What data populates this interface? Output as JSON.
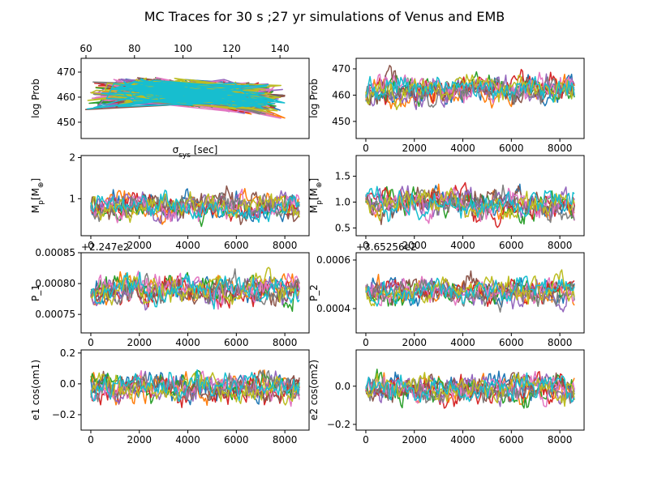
{
  "figure": {
    "title": "MC Traces for 30 s ;27 yr simulations of Venus and EMB",
    "palette": [
      "#1f77b4",
      "#ff7f0e",
      "#2ca02c",
      "#d62728",
      "#9467bd",
      "#8c564b",
      "#e377c2",
      "#7f7f7f",
      "#bcbd22",
      "#17becf"
    ]
  },
  "chart_data": [
    {
      "id": "logprob-vs-sigma",
      "type": "line",
      "xlabel": "σ_sys [sec]",
      "ylabel": "log Prob",
      "x_axis_position": "top",
      "xlim": [
        58,
        152
      ],
      "ylim": [
        443.5,
        475.5
      ],
      "xticks": [
        60,
        80,
        100,
        120,
        140
      ],
      "xtick_labels": [
        "60",
        "80",
        "100",
        "120",
        "140"
      ],
      "yticks": [
        450,
        460,
        470
      ],
      "ytick_labels": [
        "450",
        "460",
        "470"
      ],
      "series_count": 10,
      "samples_per_series": 120,
      "y_center": 463,
      "y_spread": 5
    },
    {
      "id": "logprob-trace",
      "type": "line",
      "xlabel": "",
      "ylabel": "log Prob",
      "xlim": [
        -400,
        9000
      ],
      "ylim": [
        443.5,
        474
      ],
      "xticks": [
        0,
        2000,
        4000,
        6000,
        8000
      ],
      "xtick_labels": [
        "0",
        "2000",
        "4000",
        "6000",
        "8000"
      ],
      "yticks": [
        450,
        460,
        470
      ],
      "ytick_labels": [
        "450",
        "460",
        "470"
      ],
      "series_count": 10,
      "samples_per_series": 150,
      "x_max": 8600,
      "y_center": 462,
      "y_spread": 6
    },
    {
      "id": "mass-1-trace",
      "type": "line",
      "xlabel": "",
      "ylabel": "M_p[M_⊕]",
      "xlim": [
        -400,
        9000
      ],
      "ylim": [
        0.1,
        2.05
      ],
      "xticks": [
        0,
        2000,
        4000,
        6000,
        8000
      ],
      "xtick_labels": [
        "0",
        "2000",
        "4000",
        "6000",
        "8000"
      ],
      "yticks": [
        1,
        2
      ],
      "ytick_labels": [
        "1",
        "2"
      ],
      "series_count": 10,
      "samples_per_series": 150,
      "x_max": 8600,
      "y_center": 0.8,
      "y_spread": 0.35
    },
    {
      "id": "mass-2-trace",
      "type": "line",
      "xlabel": "",
      "ylabel": "M_p[M_⊕]",
      "xlim": [
        -400,
        9000
      ],
      "ylim": [
        0.35,
        1.9
      ],
      "xticks": [
        0,
        2000,
        4000,
        6000,
        8000
      ],
      "xtick_labels": [
        "0",
        "2000",
        "4000",
        "6000",
        "8000"
      ],
      "yticks": [
        0.5,
        1.0,
        1.5
      ],
      "ytick_labels": [
        "0.5",
        "1.0",
        "1.5"
      ],
      "series_count": 10,
      "samples_per_series": 150,
      "x_max": 8600,
      "y_center": 0.95,
      "y_spread": 0.3
    },
    {
      "id": "period-1-trace",
      "type": "line",
      "xlabel": "",
      "ylabel": "P_1",
      "offset_text": "+2.247e2",
      "xlim": [
        -400,
        9000
      ],
      "ylim": [
        0.00072,
        0.00085
      ],
      "xticks": [
        0,
        2000,
        4000,
        6000,
        8000
      ],
      "xtick_labels": [
        "0",
        "2000",
        "4000",
        "6000",
        "8000"
      ],
      "yticks": [
        0.00075,
        0.0008,
        0.00085
      ],
      "ytick_labels": [
        "0.00075",
        "0.00080",
        "0.00085"
      ],
      "series_count": 10,
      "samples_per_series": 150,
      "x_max": 8600,
      "y_center": 0.00079,
      "y_spread": 2.5e-05
    },
    {
      "id": "period-2-trace",
      "type": "line",
      "xlabel": "",
      "ylabel": "P_2",
      "offset_text": "+3.65256e2",
      "xlim": [
        -400,
        9000
      ],
      "ylim": [
        0.0003,
        0.00063
      ],
      "xticks": [
        0,
        2000,
        4000,
        6000,
        8000
      ],
      "xtick_labels": [
        "0",
        "2000",
        "4000",
        "6000",
        "8000"
      ],
      "yticks": [
        0.0004,
        0.0006
      ],
      "ytick_labels": [
        "0.0004",
        "0.0006"
      ],
      "series_count": 10,
      "samples_per_series": 150,
      "x_max": 8600,
      "y_center": 0.00047,
      "y_spread": 6e-05
    },
    {
      "id": "ecos-1-trace",
      "type": "line",
      "xlabel": "",
      "ylabel": "e1 cos(om1)",
      "xlim": [
        -400,
        9000
      ],
      "ylim": [
        -0.3,
        0.22
      ],
      "xticks": [
        0,
        2000,
        4000,
        6000,
        8000
      ],
      "xtick_labels": [
        "0",
        "2000",
        "4000",
        "6000",
        "8000"
      ],
      "yticks": [
        -0.2,
        0.0,
        0.2
      ],
      "ytick_labels": [
        "−0.2",
        "0.0",
        "0.2"
      ],
      "series_count": 10,
      "samples_per_series": 150,
      "x_max": 8600,
      "y_center": -0.02,
      "y_spread": 0.1
    },
    {
      "id": "ecos-2-trace",
      "type": "line",
      "xlabel": "",
      "ylabel": "e2 cos(om2)",
      "xlim": [
        -400,
        9000
      ],
      "ylim": [
        -0.23,
        0.19
      ],
      "xticks": [
        0,
        2000,
        4000,
        6000,
        8000
      ],
      "xtick_labels": [
        "0",
        "2000",
        "4000",
        "6000",
        "8000"
      ],
      "yticks": [
        -0.2,
        0.0
      ],
      "ytick_labels": [
        "−0.2",
        "0.0"
      ],
      "series_count": 10,
      "samples_per_series": 150,
      "x_max": 8600,
      "y_center": -0.01,
      "y_spread": 0.08
    }
  ]
}
